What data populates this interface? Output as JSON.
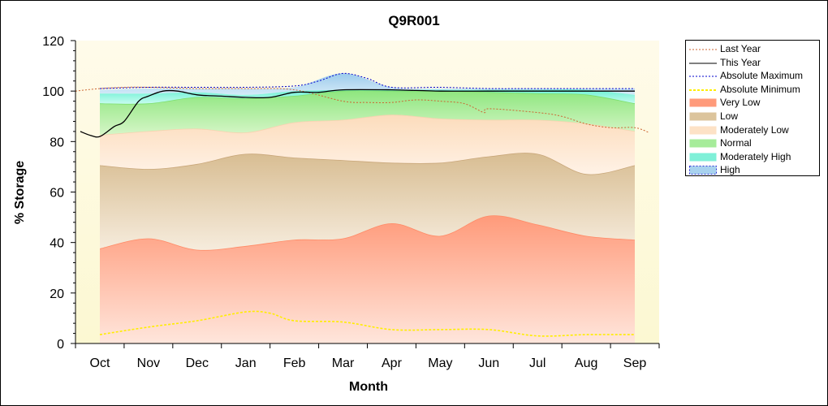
{
  "chart_data": {
    "type": "area",
    "title": "Q9R001",
    "xlabel": "Month",
    "ylabel": "% Storage",
    "ylim": [
      0,
      120
    ],
    "yticks": [
      0,
      20,
      40,
      60,
      80,
      100,
      120
    ],
    "xlim": [
      -0.5,
      11.5
    ],
    "months": [
      "Oct",
      "Nov",
      "Dec",
      "Jan",
      "Feb",
      "Mar",
      "Apr",
      "May",
      "Jun",
      "Jul",
      "Aug",
      "Sep"
    ],
    "legend_position": "right",
    "colors": {
      "plot_bg_top": "#fffbe6",
      "plot_bg_bottom": "#fdf9d5",
      "last_year": "#cc6633",
      "this_year": "#000000",
      "abs_max": "#0000cc",
      "abs_min": "#ffee00",
      "very_low": "#ff9a7a",
      "low": "#dcc49c",
      "moderately_low": "#fde2c6",
      "normal": "#a6ec9a",
      "moderately_high": "#7ff0d8",
      "high": "#a8d2ee"
    },
    "band_x": [
      0,
      1,
      2,
      3,
      4,
      5,
      6,
      7,
      8,
      9,
      10,
      11
    ],
    "bands": {
      "very_low_top": [
        37.5,
        41.5,
        37,
        38.5,
        41,
        41.5,
        47.5,
        42.5,
        50.5,
        47,
        42.5,
        41
      ],
      "low_top": [
        70.5,
        69,
        71,
        75,
        73.5,
        72.5,
        71.5,
        71.5,
        74,
        75,
        67,
        70.5
      ],
      "moderately_low_top": [
        82.5,
        84,
        85,
        83.5,
        87.5,
        88.5,
        90.5,
        89,
        88.5,
        88.5,
        87,
        84
      ],
      "normal_top": [
        95,
        95,
        97.5,
        97,
        98,
        100,
        100,
        100,
        99.5,
        99,
        98.5,
        95
      ],
      "moderately_high_top": [
        99,
        99,
        99.5,
        98.5,
        100,
        100.5,
        100.5,
        100.5,
        100.5,
        100.5,
        100.5,
        98.5
      ],
      "high_top": [
        100.5,
        101,
        101,
        101,
        101.5,
        107,
        101.5,
        101,
        101,
        101,
        101,
        101
      ]
    },
    "series": [
      {
        "name": "Last Year",
        "x": [
          -0.5,
          0,
          0.5,
          1,
          2,
          3,
          4,
          5,
          5.5,
          6,
          6.5,
          7,
          7.5,
          7.9,
          8,
          9,
          9.5,
          10,
          10.5,
          11,
          11.3
        ],
        "values": [
          100,
          101,
          101.5,
          101.5,
          101,
          101,
          100.5,
          96,
          95.5,
          95.5,
          96.5,
          96,
          95,
          91.5,
          93,
          91.5,
          90,
          87,
          85.5,
          85.5,
          83.5
        ]
      },
      {
        "name": "This Year",
        "x": [
          -0.4,
          -0.2,
          0,
          0.3,
          0.5,
          0.8,
          1,
          1.3,
          1.6,
          2,
          2.5,
          3,
          3.5,
          4,
          4.5,
          5,
          6,
          7,
          8,
          9,
          10,
          11
        ],
        "values": [
          84,
          82.5,
          82,
          86,
          88,
          96,
          98,
          100,
          100,
          98.5,
          98,
          97.5,
          97.5,
          99.5,
          99.5,
          100.5,
          100.5,
          100,
          100,
          100,
          100,
          100
        ]
      },
      {
        "name": "Absolute Maximum",
        "x": [
          0,
          1,
          2,
          3,
          4,
          4.5,
          5,
          5.5,
          6,
          7,
          8,
          9,
          10,
          11
        ],
        "values": [
          101,
          101.5,
          101.5,
          101.5,
          102,
          104,
          107,
          105,
          101.5,
          101.5,
          101,
          101,
          101,
          101
        ]
      },
      {
        "name": "Absolute Minimum",
        "x": [
          0,
          1,
          2,
          3,
          3.5,
          4,
          5,
          6,
          7,
          8,
          9,
          10,
          11
        ],
        "values": [
          3.5,
          6.5,
          9,
          12.5,
          12,
          9,
          8.5,
          5.5,
          5.5,
          5.5,
          3,
          3.5,
          3.5
        ]
      }
    ],
    "legend": [
      {
        "label": "Last Year",
        "kind": "line",
        "color": "#cc6633",
        "dash": "2,2"
      },
      {
        "label": "This Year",
        "kind": "line",
        "color": "#000000",
        "dash": ""
      },
      {
        "label": "Absolute Maximum",
        "kind": "line",
        "color": "#0000cc",
        "dash": "2,2"
      },
      {
        "label": "Absolute Minimum",
        "kind": "line",
        "color": "#ffee00",
        "dash": "3,2"
      },
      {
        "label": "Very Low",
        "kind": "fill",
        "color": "#ff9a7a"
      },
      {
        "label": "Low",
        "kind": "fill",
        "color": "#dcc49c"
      },
      {
        "label": "Moderately Low",
        "kind": "fill",
        "color": "#fde2c6"
      },
      {
        "label": "Normal",
        "kind": "fill",
        "color": "#a6ec9a"
      },
      {
        "label": "Moderately High",
        "kind": "fill",
        "color": "#7ff0d8"
      },
      {
        "label": "High",
        "kind": "fill",
        "color": "#a8d2ee",
        "dash_border": true
      }
    ]
  }
}
